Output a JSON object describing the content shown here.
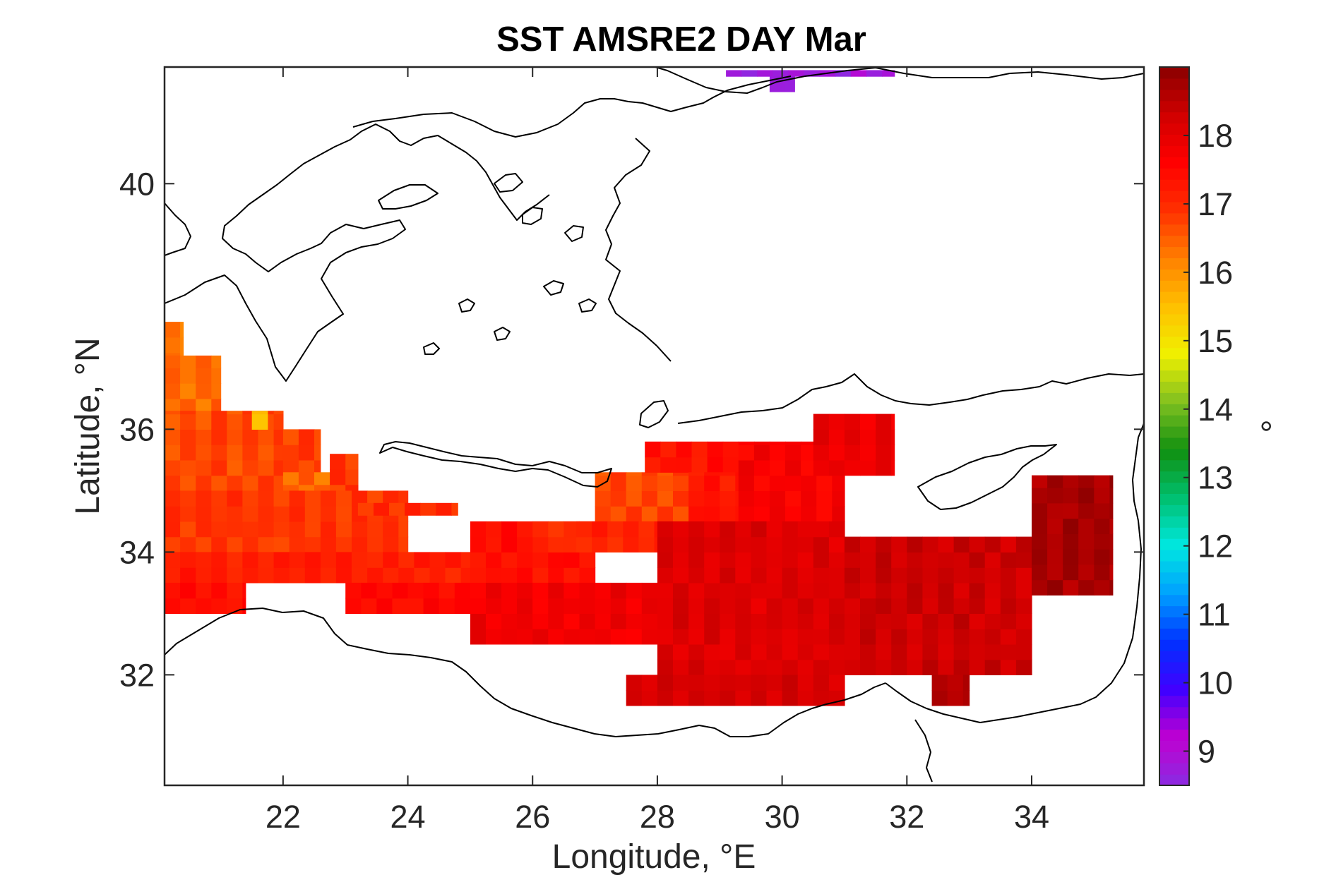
{
  "chart_data": {
    "type": "heatmap",
    "title": "SST AMSRE2 DAY Mar",
    "xlabel": "Longitude, °E",
    "ylabel": "Latitude, °N",
    "colorbar_label": "°",
    "xlim": [
      20.1,
      35.8
    ],
    "ylim": [
      30.2,
      41.9
    ],
    "xticks": [
      22,
      24,
      26,
      28,
      30,
      32,
      34
    ],
    "yticks": [
      32,
      34,
      36,
      40
    ],
    "clim": [
      8.5,
      19
    ],
    "colorbar_ticks": [
      9,
      10,
      11,
      12,
      13,
      14,
      15,
      16,
      17,
      18
    ],
    "colormap": [
      "#8a2be2",
      "#c000d0",
      "#4000ff",
      "#0030ff",
      "#00a0ff",
      "#00e8e0",
      "#00c070",
      "#109010",
      "#80c020",
      "#f0f000",
      "#ffc000",
      "#ff8000",
      "#ff3000",
      "#ff0000",
      "#d00000",
      "#8a0000"
    ],
    "grid_step_deg": 0.25,
    "regions": [
      {
        "lon_min": 20.1,
        "lon_max": 20.4,
        "lat_min": 35.0,
        "lat_max": 37.75,
        "value": 16.3
      },
      {
        "lon_min": 20.1,
        "lon_max": 21.0,
        "lat_min": 35.0,
        "lat_max": 37.2,
        "value": 16.4
      },
      {
        "lon_min": 20.1,
        "lon_max": 22.0,
        "lat_min": 35.0,
        "lat_max": 36.3,
        "value": 16.7
      },
      {
        "lon_min": 21.5,
        "lon_max": 21.75,
        "lat_min": 36.0,
        "lat_max": 36.3,
        "value": 15.6
      },
      {
        "lon_min": 22.0,
        "lon_max": 22.6,
        "lat_min": 35.25,
        "lat_max": 36.0,
        "value": 16.8
      },
      {
        "lon_min": 22.0,
        "lon_max": 22.75,
        "lat_min": 34.6,
        "lat_max": 35.3,
        "value": 16.4
      },
      {
        "lon_min": 22.75,
        "lon_max": 23.2,
        "lat_min": 34.6,
        "lat_max": 35.6,
        "value": 16.9
      },
      {
        "lon_min": 20.1,
        "lon_max": 24.0,
        "lat_min": 34.0,
        "lat_max": 35.0,
        "value": 16.9
      },
      {
        "lon_min": 20.1,
        "lon_max": 25.0,
        "lat_min": 33.5,
        "lat_max": 34.0,
        "value": 17.2
      },
      {
        "lon_min": 20.1,
        "lon_max": 21.4,
        "lat_min": 33.0,
        "lat_max": 33.5,
        "value": 17.4
      },
      {
        "lon_min": 23.2,
        "lon_max": 24.8,
        "lat_min": 34.6,
        "lat_max": 34.8,
        "value": 17.0
      },
      {
        "lon_min": 23.0,
        "lon_max": 25.0,
        "lat_min": 33.0,
        "lat_max": 33.5,
        "value": 17.5
      },
      {
        "lon_min": 25.0,
        "lon_max": 27.0,
        "lat_min": 33.5,
        "lat_max": 34.5,
        "value": 17.4
      },
      {
        "lon_min": 26.0,
        "lon_max": 27.0,
        "lat_min": 34.0,
        "lat_max": 34.5,
        "value": 17.0
      },
      {
        "lon_min": 27.0,
        "lon_max": 28.5,
        "lat_min": 34.5,
        "lat_max": 35.3,
        "value": 16.7
      },
      {
        "lon_min": 26.7,
        "lon_max": 29.0,
        "lat_min": 34.0,
        "lat_max": 34.5,
        "value": 17.1
      },
      {
        "lon_min": 27.8,
        "lon_max": 29.3,
        "lat_min": 35.3,
        "lat_max": 35.8,
        "value": 17.4
      },
      {
        "lon_min": 28.5,
        "lon_max": 29.3,
        "lat_min": 34.5,
        "lat_max": 35.3,
        "value": 17.3
      },
      {
        "lon_min": 29.3,
        "lon_max": 31.0,
        "lat_min": 34.5,
        "lat_max": 35.8,
        "value": 17.7
      },
      {
        "lon_min": 30.5,
        "lon_max": 31.8,
        "lat_min": 35.25,
        "lat_max": 36.25,
        "value": 17.9
      },
      {
        "lon_min": 25.0,
        "lon_max": 28.0,
        "lat_min": 32.5,
        "lat_max": 33.5,
        "value": 17.8
      },
      {
        "lon_min": 28.0,
        "lon_max": 31.0,
        "lat_min": 32.0,
        "lat_max": 34.5,
        "value": 18.1
      },
      {
        "lon_min": 31.0,
        "lon_max": 34.0,
        "lat_min": 32.0,
        "lat_max": 34.25,
        "value": 18.3
      },
      {
        "lon_min": 34.0,
        "lon_max": 35.3,
        "lat_min": 33.3,
        "lat_max": 35.25,
        "value": 18.7
      },
      {
        "lon_min": 27.5,
        "lon_max": 31.0,
        "lat_min": 31.5,
        "lat_max": 32.0,
        "value": 18.2
      },
      {
        "lon_min": 32.4,
        "lon_max": 33.0,
        "lat_min": 31.5,
        "lat_max": 32.0,
        "value": 18.6
      },
      {
        "lon_min": 29.1,
        "lon_max": 31.8,
        "lat_min": 41.75,
        "lat_max": 41.85,
        "value": 8.8
      },
      {
        "lon_min": 29.8,
        "lon_max": 30.2,
        "lat_min": 41.5,
        "lat_max": 41.75,
        "value": 8.7
      }
    ]
  }
}
